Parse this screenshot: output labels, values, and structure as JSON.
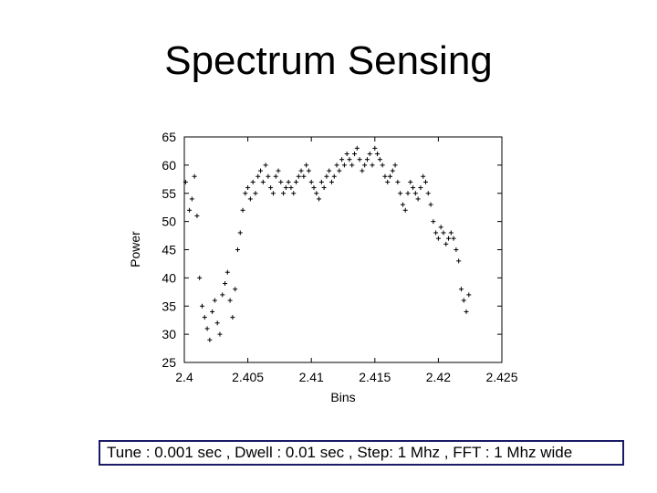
{
  "slide": {
    "title": "Spectrum Sensing",
    "caption": "Tune : 0.001 sec , Dwell : 0.01 sec , Step: 1 Mhz , FFT : 1 Mhz wide"
  },
  "chart_data": {
    "type": "scatter",
    "title": "",
    "xlabel": "Bins",
    "ylabel": "Power",
    "xlim": [
      2.4,
      2.425
    ],
    "ylim": [
      25,
      65
    ],
    "xticks": [
      "2.4",
      "2.405",
      "2.41",
      "2.415",
      "2.42",
      "2.425"
    ],
    "yticks": [
      "25",
      "30",
      "35",
      "40",
      "45",
      "50",
      "55",
      "60",
      "65"
    ],
    "grid": false,
    "legend": "none",
    "marker": "+",
    "marker_color": "#000000",
    "series": [
      {
        "x": [
          2.4001,
          2.4004,
          2.4006,
          2.4008,
          2.401,
          2.4012,
          2.4014,
          2.4016,
          2.4018,
          2.402,
          2.4022,
          2.4024,
          2.4026,
          2.4028,
          2.403,
          2.4032,
          2.4034,
          2.4036,
          2.4038,
          2.404,
          2.4042,
          2.4044,
          2.4046,
          2.4048,
          2.405,
          2.4052,
          2.4054,
          2.4056,
          2.4058,
          2.406,
          2.4062,
          2.4064,
          2.4066,
          2.4068,
          2.407,
          2.4072,
          2.4074,
          2.4076,
          2.4078,
          2.408,
          2.4082,
          2.4084,
          2.4086,
          2.4088,
          2.409,
          2.4092,
          2.4094,
          2.4096,
          2.4098,
          2.41,
          2.4102,
          2.4104,
          2.4106,
          2.4108,
          2.411,
          2.4112,
          2.4114,
          2.4116,
          2.4118,
          2.412,
          2.4122,
          2.4124,
          2.4126,
          2.4128,
          2.413,
          2.4132,
          2.4134,
          2.4136,
          2.4138,
          2.414,
          2.4142,
          2.4144,
          2.4146,
          2.4148,
          2.415,
          2.4152,
          2.4154,
          2.4156,
          2.4158,
          2.416,
          2.4162,
          2.4164,
          2.4166,
          2.4168,
          2.417,
          2.4172,
          2.4174,
          2.4176,
          2.4178,
          2.418,
          2.4182,
          2.4184,
          2.4186,
          2.4188,
          2.419,
          2.4192,
          2.4194,
          2.4196,
          2.4198,
          2.42,
          2.4202,
          2.4204,
          2.4206,
          2.4208,
          2.421,
          2.4212,
          2.4214,
          2.4216,
          2.4218,
          2.422,
          2.4222,
          2.4224
        ],
        "y": [
          57,
          52,
          54,
          58,
          51,
          40,
          35,
          33,
          31,
          29,
          34,
          36,
          32,
          30,
          37,
          39,
          41,
          36,
          33,
          38,
          45,
          48,
          52,
          55,
          56,
          54,
          57,
          55,
          58,
          59,
          57,
          60,
          58,
          56,
          55,
          58,
          59,
          57,
          55,
          56,
          57,
          56,
          55,
          57,
          58,
          59,
          58,
          60,
          59,
          57,
          56,
          55,
          54,
          57,
          56,
          58,
          59,
          57,
          58,
          60,
          59,
          61,
          60,
          62,
          61,
          60,
          62,
          63,
          61,
          59,
          60,
          61,
          62,
          60,
          63,
          62,
          61,
          60,
          58,
          57,
          58,
          59,
          60,
          57,
          55,
          53,
          52,
          55,
          57,
          56,
          55,
          54,
          56,
          58,
          57,
          55,
          53,
          50,
          48,
          47,
          49,
          48,
          46,
          47,
          48,
          47,
          45,
          43,
          38,
          36,
          34,
          37
        ]
      }
    ]
  }
}
